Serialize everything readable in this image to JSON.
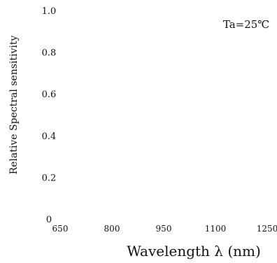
{
  "chart_data": {
    "type": "line",
    "title": "",
    "xlabel": "Wavelength λ (nm)",
    "ylabel": "Relative Spectral sensitivity",
    "annotation": "Ta=25℃",
    "x_ticks": [
      "650",
      "800",
      "950",
      "1100",
      "1250"
    ],
    "y_ticks": [
      "0",
      "0.2",
      "0.4",
      "0.6",
      "0.8",
      "1.0"
    ],
    "xlim": [
      650,
      1250
    ],
    "ylim": [
      0,
      1.0
    ],
    "grid": false,
    "series": []
  }
}
